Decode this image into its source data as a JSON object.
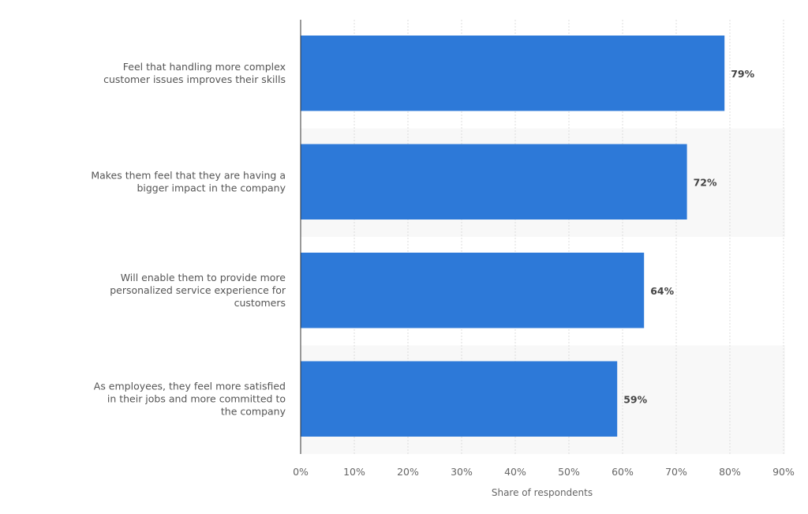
{
  "chart_data": {
    "type": "bar",
    "orientation": "horizontal",
    "categories": [
      [
        "Feel that handling more complex",
        "customer issues improves their skills"
      ],
      [
        "Makes them feel that they are having a",
        "bigger impact in the company"
      ],
      [
        "Will enable them to provide more",
        "personalized service experience for",
        "customers"
      ],
      [
        "As employees, they feel more satisfied",
        "in their jobs and more committed to",
        "the company"
      ]
    ],
    "values": [
      79,
      72,
      64,
      59
    ],
    "value_labels": [
      "79%",
      "72%",
      "64%",
      "59%"
    ],
    "xlabel": "Share of respondents",
    "xlim": [
      0,
      90
    ],
    "ticks": [
      "0%",
      "10%",
      "20%",
      "30%",
      "40%",
      "50%",
      "60%",
      "70%",
      "80%",
      "90%"
    ],
    "grid": true,
    "colors": {
      "bar": "#2d79d8",
      "band": "#f8f8f8",
      "grid": "#dddddd"
    }
  }
}
